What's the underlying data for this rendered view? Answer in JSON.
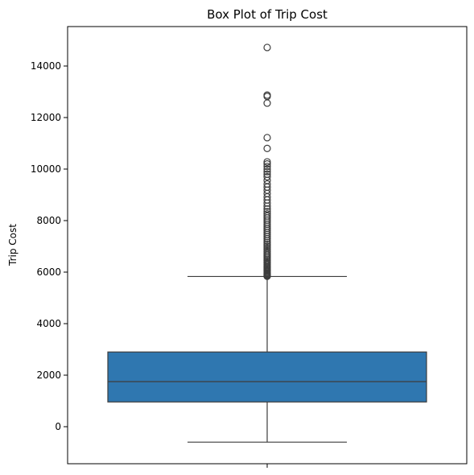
{
  "chart_data": {
    "type": "box",
    "title": "Box Plot of Trip Cost",
    "ylabel": "Trip Cost",
    "xlabel": "",
    "ylim": [
      -1500,
      15500
    ],
    "yticks": [
      0,
      2000,
      4000,
      6000,
      8000,
      10000,
      12000,
      14000
    ],
    "box": {
      "q1": 960,
      "median": 1750,
      "q3": 2900,
      "whisker_low": -600,
      "whisker_high": 5830,
      "color": "#2f77b0"
    },
    "outliers": [
      5840,
      5860,
      5880,
      5900,
      5930,
      5960,
      6000,
      6040,
      6080,
      6120,
      6160,
      6200,
      6250,
      6300,
      6350,
      6400,
      6450,
      6500,
      6560,
      6620,
      6680,
      6740,
      6800,
      6870,
      6940,
      7010,
      7080,
      7150,
      7220,
      7300,
      7380,
      7460,
      7540,
      7620,
      7700,
      7780,
      7860,
      7940,
      8020,
      8100,
      8180,
      8260,
      8350,
      8450,
      8560,
      8680,
      8800,
      8920,
      9050,
      9180,
      9300,
      9420,
      9560,
      9700,
      9800,
      9900,
      10000,
      10100,
      10200,
      10280,
      10800,
      11220,
      12560,
      12820,
      12870,
      14720
    ],
    "grid": false,
    "legend": false
  }
}
